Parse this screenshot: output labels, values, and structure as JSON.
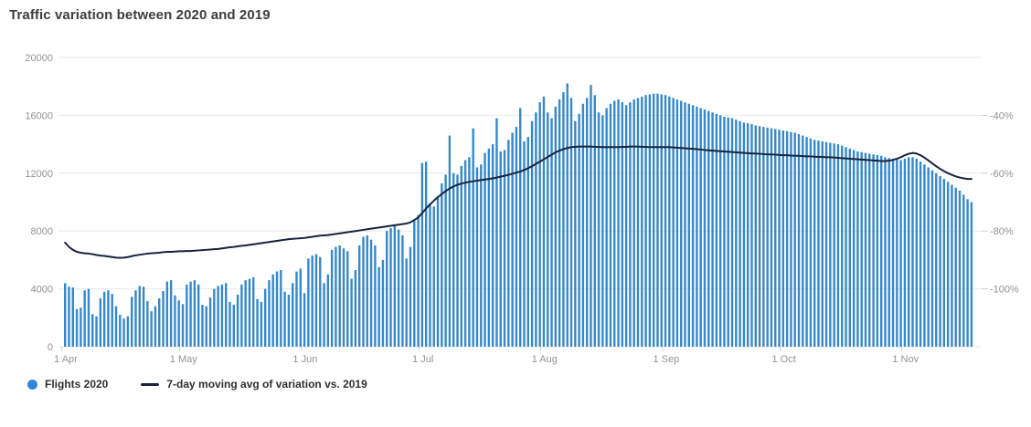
{
  "chart": {
    "title": "Traffic variation between 2020 and 2019",
    "colors": {
      "bar": "#3688c8",
      "legend_dot": "#2d87d8",
      "line": "#17243d",
      "grid": "#e8e8e8",
      "tick_text": "#929292",
      "title_text": "#3d3d3d"
    },
    "series_bar_name": "Flights 2020",
    "series_line_name": "7-day moving avg of variation vs. 2019"
  },
  "chart_data": {
    "type": "bar+line combo, daily values 1 Apr 2020 - 18 Nov 2020",
    "title": "Traffic variation between 2020 and 2019",
    "left_axis": {
      "label": "",
      "ticks": [
        0,
        4000,
        8000,
        12000,
        16000,
        20000
      ],
      "range": [
        0,
        20000
      ]
    },
    "right_axis": {
      "label": "",
      "ticks": [
        -40,
        -60,
        -80,
        -100
      ],
      "tick_suffix": "%",
      "range": [
        -20,
        -120
      ]
    },
    "x_ticks": [
      {
        "label": "1 Apr",
        "index": 0
      },
      {
        "label": "1 May",
        "index": 30
      },
      {
        "label": "1 Jun",
        "index": 61
      },
      {
        "label": "1 Jul",
        "index": 91
      },
      {
        "label": "1 Aug",
        "index": 122
      },
      {
        "label": "1 Sep",
        "index": 153
      },
      {
        "label": "1 Oct",
        "index": 183
      },
      {
        "label": "1 Nov",
        "index": 214
      }
    ],
    "legend_position": "bottom-left",
    "grid": "horizontal only",
    "series": [
      {
        "name": "Flights 2020",
        "type": "bar",
        "axis": "left",
        "values": [
          4400,
          4150,
          4100,
          2600,
          2700,
          3900,
          4000,
          2250,
          2100,
          3350,
          3800,
          3900,
          3650,
          2800,
          2200,
          1950,
          2100,
          3450,
          3900,
          4200,
          4150,
          3150,
          2450,
          2800,
          3350,
          3850,
          4500,
          4600,
          3550,
          3200,
          2950,
          4300,
          4500,
          4600,
          4300,
          2900,
          2800,
          3400,
          4000,
          4200,
          4300,
          4400,
          3100,
          2900,
          3600,
          4300,
          4600,
          4700,
          4800,
          3300,
          3100,
          4000,
          4600,
          5000,
          5200,
          5300,
          3800,
          3600,
          4400,
          5200,
          5400,
          3700,
          6100,
          6300,
          6400,
          6200,
          4400,
          5000,
          6700,
          6900,
          7000,
          6800,
          6600,
          4700,
          5300,
          7000,
          7600,
          7700,
          7400,
          7000,
          5500,
          6000,
          8000,
          8200,
          8400,
          8100,
          7700,
          6100,
          6900,
          8700,
          9100,
          12700,
          12800,
          9900,
          9700,
          10400,
          11300,
          11900,
          14600,
          12000,
          11900,
          12500,
          12900,
          13100,
          15100,
          12400,
          12600,
          13400,
          13700,
          14000,
          15800,
          13500,
          13600,
          14300,
          14800,
          15200,
          16500,
          14200,
          14500,
          15600,
          16200,
          16900,
          17300,
          16200,
          15800,
          16600,
          17100,
          17600,
          18200,
          17200,
          15600,
          16100,
          16800,
          17200,
          18100,
          17400,
          16200,
          16000,
          16500,
          16800,
          17000,
          17100,
          16900,
          16700,
          16900,
          17100,
          17200,
          17300,
          17400,
          17450,
          17500,
          17500,
          17450,
          17400,
          17300,
          17200,
          17100,
          17000,
          16900,
          16800,
          16700,
          16600,
          16500,
          16400,
          16300,
          16200,
          16100,
          16000,
          15900,
          15850,
          15800,
          15700,
          15600,
          15500,
          15450,
          15400,
          15300,
          15250,
          15200,
          15150,
          15100,
          15050,
          15000,
          14950,
          14900,
          14850,
          14800,
          14700,
          14600,
          14500,
          14400,
          14300,
          14250,
          14200,
          14150,
          14100,
          14050,
          14000,
          13900,
          13800,
          13700,
          13600,
          13500,
          13450,
          13400,
          13350,
          13300,
          13250,
          13200,
          13100,
          13050,
          13000,
          12950,
          12900,
          13000,
          13100,
          13100,
          13000,
          12800,
          12600,
          12400,
          12200,
          12000,
          11800,
          11600,
          11400,
          11200,
          11000,
          10800,
          10500,
          10200,
          10000
        ]
      },
      {
        "name": "7-day moving avg of variation vs. 2019",
        "type": "line",
        "axis": "right",
        "unit": "%",
        "values": [
          -84.0,
          -85.5,
          -86.5,
          -87.2,
          -87.5,
          -87.7,
          -87.8,
          -88.0,
          -88.3,
          -88.5,
          -88.6,
          -88.8,
          -89.0,
          -89.2,
          -89.3,
          -89.2,
          -89.0,
          -88.7,
          -88.4,
          -88.2,
          -88.0,
          -87.8,
          -87.7,
          -87.6,
          -87.5,
          -87.3,
          -87.2,
          -87.2,
          -87.1,
          -87.0,
          -87.0,
          -86.9,
          -86.9,
          -86.8,
          -86.7,
          -86.6,
          -86.5,
          -86.4,
          -86.3,
          -86.2,
          -86.0,
          -85.8,
          -85.6,
          -85.5,
          -85.3,
          -85.1,
          -85.0,
          -84.8,
          -84.6,
          -84.4,
          -84.2,
          -84.0,
          -83.8,
          -83.6,
          -83.4,
          -83.2,
          -83.0,
          -82.8,
          -82.7,
          -82.6,
          -82.5,
          -82.4,
          -82.2,
          -82.0,
          -81.8,
          -81.6,
          -81.5,
          -81.4,
          -81.2,
          -81.0,
          -80.8,
          -80.6,
          -80.4,
          -80.2,
          -80.0,
          -79.8,
          -79.6,
          -79.4,
          -79.2,
          -79.0,
          -78.8,
          -78.6,
          -78.4,
          -78.2,
          -78.0,
          -77.8,
          -77.6,
          -77.4,
          -77.0,
          -76.2,
          -75.3,
          -73.8,
          -72.2,
          -70.8,
          -69.5,
          -68.3,
          -67.2,
          -66.2,
          -65.3,
          -64.6,
          -64.0,
          -63.6,
          -63.3,
          -63.0,
          -62.8,
          -62.6,
          -62.4,
          -62.2,
          -62.0,
          -61.8,
          -61.5,
          -61.2,
          -60.9,
          -60.6,
          -60.2,
          -59.8,
          -59.4,
          -58.9,
          -58.3,
          -57.6,
          -56.8,
          -56.0,
          -55.2,
          -54.4,
          -53.6,
          -52.8,
          -52.2,
          -51.7,
          -51.3,
          -51.0,
          -50.9,
          -50.8,
          -50.8,
          -50.8,
          -50.8,
          -50.9,
          -50.9,
          -51.0,
          -51.0,
          -51.0,
          -51.0,
          -51.0,
          -50.9,
          -50.9,
          -50.8,
          -50.8,
          -50.8,
          -50.9,
          -50.9,
          -51.0,
          -51.0,
          -51.0,
          -51.0,
          -51.0,
          -51.0,
          -51.1,
          -51.2,
          -51.3,
          -51.4,
          -51.5,
          -51.6,
          -51.7,
          -51.8,
          -52.0,
          -52.1,
          -52.2,
          -52.3,
          -52.4,
          -52.5,
          -52.6,
          -52.7,
          -52.8,
          -52.9,
          -53.0,
          -53.1,
          -53.2,
          -53.2,
          -53.3,
          -53.4,
          -53.5,
          -53.5,
          -53.6,
          -53.7,
          -53.8,
          -53.8,
          -53.9,
          -54.0,
          -54.0,
          -54.1,
          -54.2,
          -54.2,
          -54.3,
          -54.4,
          -54.4,
          -54.5,
          -54.5,
          -54.6,
          -54.7,
          -54.8,
          -54.9,
          -55.0,
          -55.1,
          -55.2,
          -55.3,
          -55.4,
          -55.5,
          -55.6,
          -55.7,
          -55.8,
          -55.8,
          -55.7,
          -55.4,
          -55.0,
          -54.5,
          -53.8,
          -53.3,
          -53.0,
          -53.2,
          -53.8,
          -54.6,
          -55.6,
          -56.6,
          -57.6,
          -58.5,
          -59.3,
          -60.0,
          -60.6,
          -61.1,
          -61.5,
          -61.8,
          -62.0,
          -62.0
        ]
      }
    ]
  }
}
